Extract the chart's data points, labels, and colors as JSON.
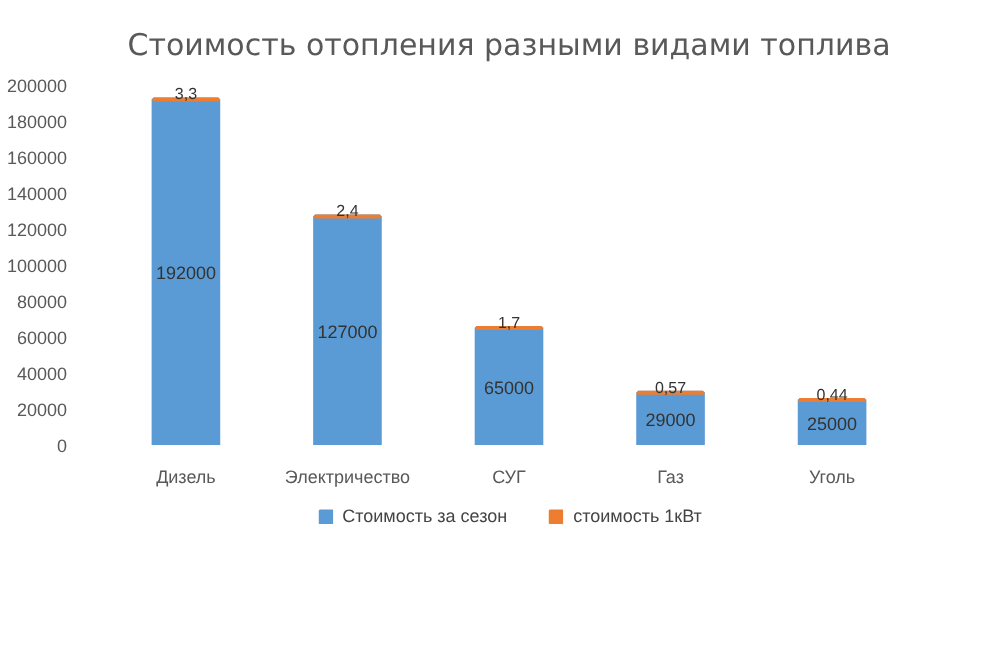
{
  "chart_data": {
    "type": "bar",
    "stacked": true,
    "title": "Стоимость отопления разными видами топлива",
    "categories": [
      "Дизель",
      "Электричество",
      "СУГ",
      "Газ",
      "Уголь"
    ],
    "series": [
      {
        "name": "Стоимость за сезон",
        "color": "#5b9bd5",
        "values": [
          192000,
          127000,
          65000,
          29000,
          25000
        ],
        "value_labels": [
          "192000",
          "127000",
          "65000",
          "29000",
          "25000"
        ]
      },
      {
        "name": "стоимость 1кВт",
        "color": "#ed7d31",
        "values": [
          3.3,
          2.4,
          1.7,
          0.57,
          0.44
        ],
        "value_labels": [
          "3,3",
          "2,4",
          "1,7",
          "0,57",
          "0,44"
        ]
      }
    ],
    "ylim": [
      0,
      200000
    ],
    "yticks": [
      0,
      20000,
      40000,
      60000,
      80000,
      100000,
      120000,
      140000,
      160000,
      180000,
      200000
    ],
    "grid": false,
    "legend": "bottom"
  }
}
